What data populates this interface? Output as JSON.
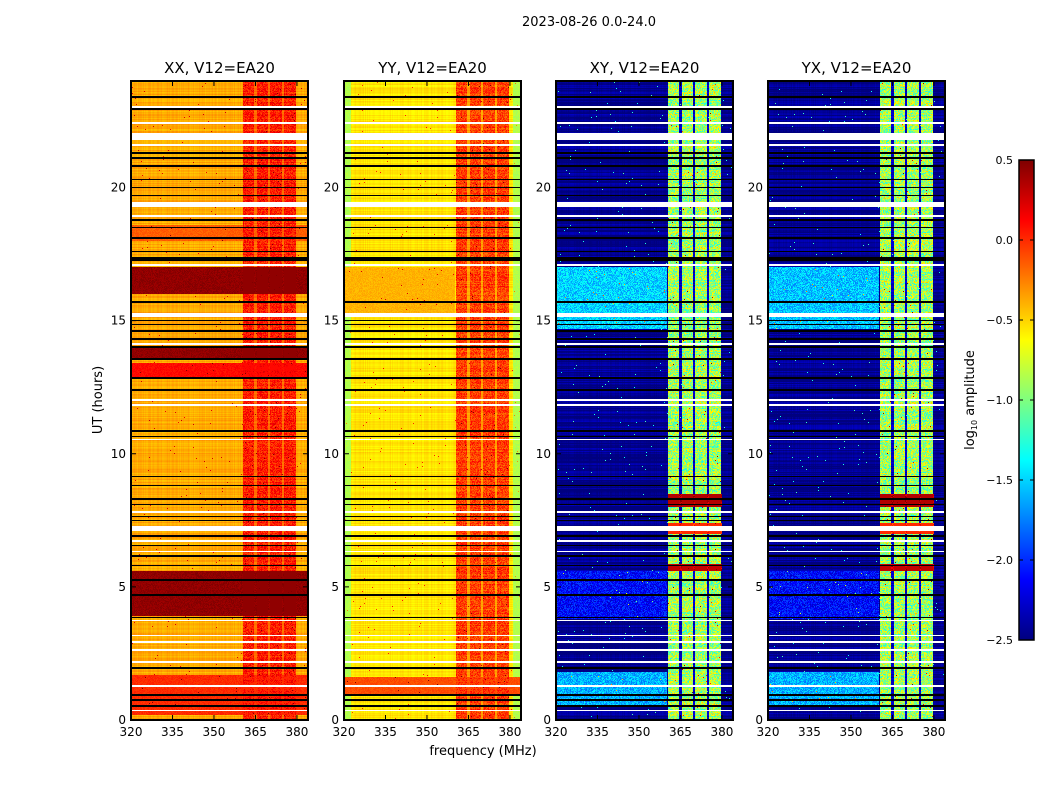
{
  "suptitle": "2023-08-26 0.0-24.0",
  "chart_data": {
    "type": "heatmap",
    "title": "2023-08-26 0.0-24.0",
    "xlabel": "frequency (MHz)",
    "ylabel": "UT (hours)",
    "xlim": [
      320,
      384
    ],
    "ylim": [
      0,
      24
    ],
    "xticks": [
      320,
      335,
      350,
      365,
      380
    ],
    "xtick_labels": [
      "320",
      "335",
      "350",
      "365",
      "380"
    ],
    "yticks": [
      0,
      5,
      10,
      15,
      20
    ],
    "ytick_labels": [
      "0",
      "5",
      "10",
      "15",
      "20"
    ],
    "colorbar": {
      "label_main": "log",
      "label_sub": "10",
      "label_rest": " amplitude",
      "colormap": "jet",
      "range": [
        -2.5,
        0.5
      ],
      "ticks": [
        0.5,
        0.0,
        -0.5,
        -1.0,
        -1.5,
        -2.0,
        -2.5
      ],
      "tick_labels": [
        "0.5",
        "0.0",
        "−0.5",
        "−1.0",
        "−1.5",
        "−2.0",
        "−2.5"
      ]
    },
    "flagged_black_hours": [
      23.4,
      22.95,
      21.3,
      21.1,
      20.8,
      20.3,
      20.0,
      19.7,
      18.77,
      18.5,
      18.1,
      17.6,
      17.35,
      17.27,
      15.7,
      15.0,
      14.85,
      14.6,
      14.3,
      14.0,
      13.55,
      12.85,
      12.4,
      10.85,
      10.65,
      9.15,
      8.8,
      8.3,
      8.1,
      7.65,
      7.5,
      6.9,
      6.55,
      6.15,
      5.8,
      5.25,
      4.7,
      3.85,
      1.95,
      0.95,
      0.75,
      0.52
    ],
    "flagged_white_hours": [
      [
        21.8,
        22.05
      ],
      [
        21.55,
        21.65
      ],
      [
        19.25,
        19.45
      ],
      [
        17.05,
        17.12
      ],
      [
        18.9,
        18.95
      ],
      [
        15.15,
        15.3
      ],
      [
        14.1,
        14.15
      ],
      [
        11.8,
        11.85
      ],
      [
        10.5,
        10.55
      ],
      [
        7.78,
        7.85
      ],
      [
        7.1,
        7.3
      ],
      [
        3.7,
        3.75
      ],
      [
        3.15,
        3.2
      ],
      [
        2.6,
        2.65
      ],
      [
        2.15,
        2.2
      ],
      [
        1.25,
        1.3
      ],
      [
        0.33,
        0.38
      ],
      [
        23.0,
        23.05
      ],
      [
        22.4,
        22.45
      ],
      [
        12.0,
        12.05
      ],
      [
        6.3,
        6.35
      ],
      [
        6.7,
        6.75
      ],
      [
        2.9,
        2.95
      ]
    ],
    "subbands_mhz": [
      [
        360.5,
        364.6
      ],
      [
        365.4,
        369.6
      ],
      [
        370.4,
        374.6
      ],
      [
        375.4,
        379.6
      ]
    ],
    "panels": [
      {
        "title": "XX, V12=EA20",
        "base": -0.38,
        "band_value": 0.05,
        "gap_value": -0.2,
        "segments": [
          {
            "t": [
              16.0,
              17.0
            ],
            "f": [
              320,
              384
            ],
            "value": 0.45
          },
          {
            "t": [
              13.6,
              14.05
            ],
            "f": [
              320,
              384
            ],
            "value": 0.45
          },
          {
            "t": [
              12.8,
              13.4
            ],
            "f": [
              320,
              384
            ],
            "value": 0.1
          },
          {
            "t": [
              18.0,
              18.6
            ],
            "f": [
              320,
              384
            ],
            "value": -0.15
          },
          {
            "t": [
              3.9,
              5.6
            ],
            "f": [
              320,
              384
            ],
            "value": 0.45
          },
          {
            "t": [
              0.2,
              1.7
            ],
            "f": [
              320,
              384
            ],
            "value": 0.0
          }
        ]
      },
      {
        "title": "YY, V12=EA20",
        "base": -0.55,
        "band_value": -0.05,
        "gap_value": -0.35,
        "segments": [
          {
            "t": [
              0,
              24
            ],
            "f": [
              320,
              322.5
            ],
            "value": -0.85
          },
          {
            "t": [
              0,
              24
            ],
            "f": [
              381,
              384
            ],
            "value": -0.85
          },
          {
            "t": [
              15.2,
              17.0
            ],
            "f": [
              320,
              360
            ],
            "value": -0.4
          },
          {
            "t": [
              0.9,
              1.6
            ],
            "f": [
              320,
              384
            ],
            "value": -0.1
          }
        ]
      },
      {
        "title": "XY, V12=EA20",
        "base": -2.45,
        "band_value": -0.9,
        "gap_value": -2.3,
        "segments": [
          {
            "t": [
              14.7,
              17.0
            ],
            "f": [
              320,
              360
            ],
            "value": -1.5
          },
          {
            "t": [
              0.5,
              1.8
            ],
            "f": [
              320,
              360
            ],
            "value": -1.6
          },
          {
            "t": [
              3.8,
              5.6
            ],
            "f": [
              320,
              360
            ],
            "value": -2.1
          },
          {
            "t": [
              8.0,
              8.5
            ],
            "f": [
              360.5,
              380
            ],
            "value": 0.35
          },
          {
            "t": [
              5.6,
              5.85
            ],
            "f": [
              360.5,
              380
            ],
            "value": 0.3
          },
          {
            "t": [
              7.0,
              7.4
            ],
            "f": [
              360.5,
              380
            ],
            "value": 0.0
          }
        ]
      },
      {
        "title": "YX, V12=EA20",
        "base": -2.45,
        "band_value": -0.9,
        "gap_value": -2.3,
        "segments": [
          {
            "t": [
              14.7,
              17.0
            ],
            "f": [
              320,
              360
            ],
            "value": -1.55
          },
          {
            "t": [
              0.5,
              1.8
            ],
            "f": [
              320,
              360
            ],
            "value": -1.6
          },
          {
            "t": [
              3.8,
              5.6
            ],
            "f": [
              320,
              360
            ],
            "value": -2.1
          },
          {
            "t": [
              8.0,
              8.5
            ],
            "f": [
              360.5,
              380
            ],
            "value": 0.35
          },
          {
            "t": [
              5.6,
              5.85
            ],
            "f": [
              360.5,
              380
            ],
            "value": 0.3
          },
          {
            "t": [
              7.0,
              7.4
            ],
            "f": [
              360.5,
              380
            ],
            "value": 0.0
          }
        ]
      }
    ]
  }
}
